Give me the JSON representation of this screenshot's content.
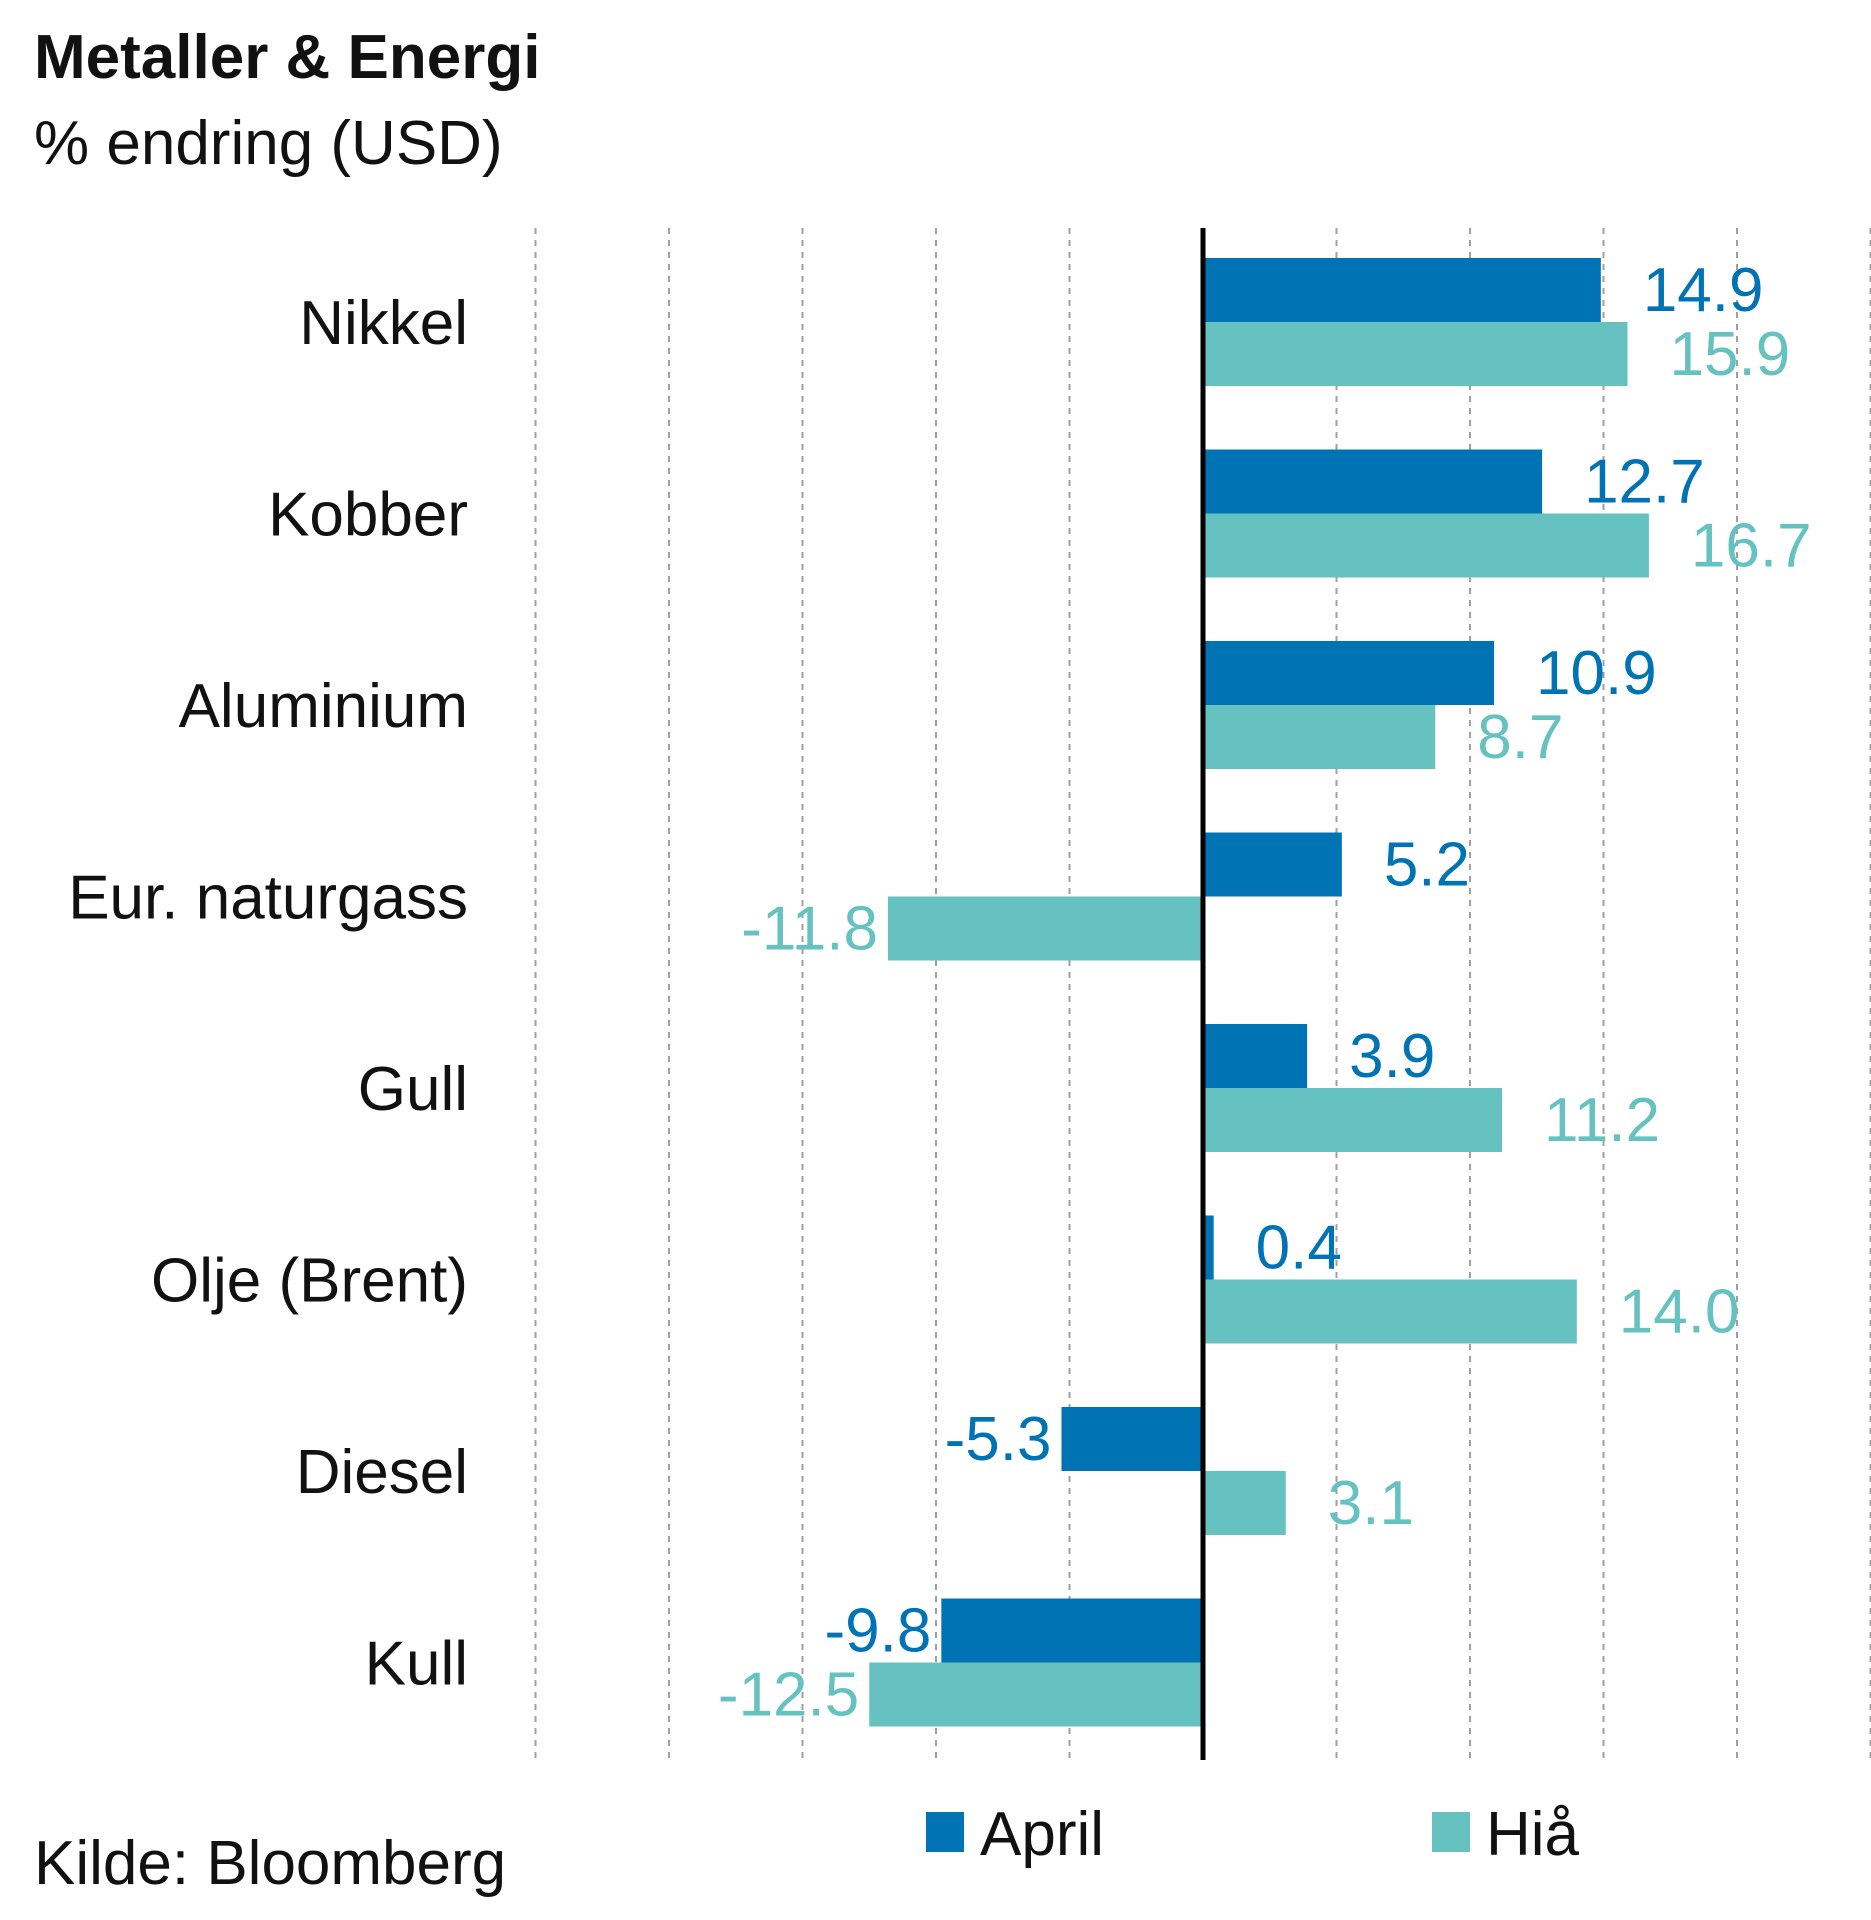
{
  "chart_data": {
    "type": "bar",
    "orientation": "horizontal",
    "title": "Metaller & Energi",
    "subtitle": "% endring (USD)",
    "source": "Kilde: Bloomberg",
    "categories": [
      "Nikkel",
      "Kobber",
      "Aluminium",
      "Eur. naturgass",
      "Gull",
      "Olje (Brent)",
      "Diesel",
      "Kull"
    ],
    "series": [
      {
        "name": "April",
        "color": "#0073b4",
        "values": [
          14.9,
          12.7,
          10.9,
          5.2,
          3.9,
          0.4,
          -5.3,
          -9.8
        ]
      },
      {
        "name": "Hiå",
        "color": "#66c2c0",
        "values": [
          15.9,
          16.7,
          8.7,
          -11.8,
          11.2,
          14.0,
          3.1,
          -12.5
        ]
      }
    ],
    "value_labels": {
      "April": [
        "14.9",
        "12.7",
        "10.9",
        "5.2",
        "3.9",
        "0.4",
        "-5.3",
        "-9.8"
      ],
      "Hiå": [
        "15.9",
        "16.7",
        "8.7",
        "-11.8",
        "11.2",
        "14.0",
        "3.1",
        "-12.5"
      ]
    },
    "xlim": [
      -25,
      25
    ],
    "grid_x": [
      -25,
      -20,
      -15,
      -10,
      -5,
      0,
      5,
      10,
      15,
      20,
      25
    ],
    "grid": true,
    "legend_position": "bottom",
    "zero_line_color": "#000000"
  }
}
